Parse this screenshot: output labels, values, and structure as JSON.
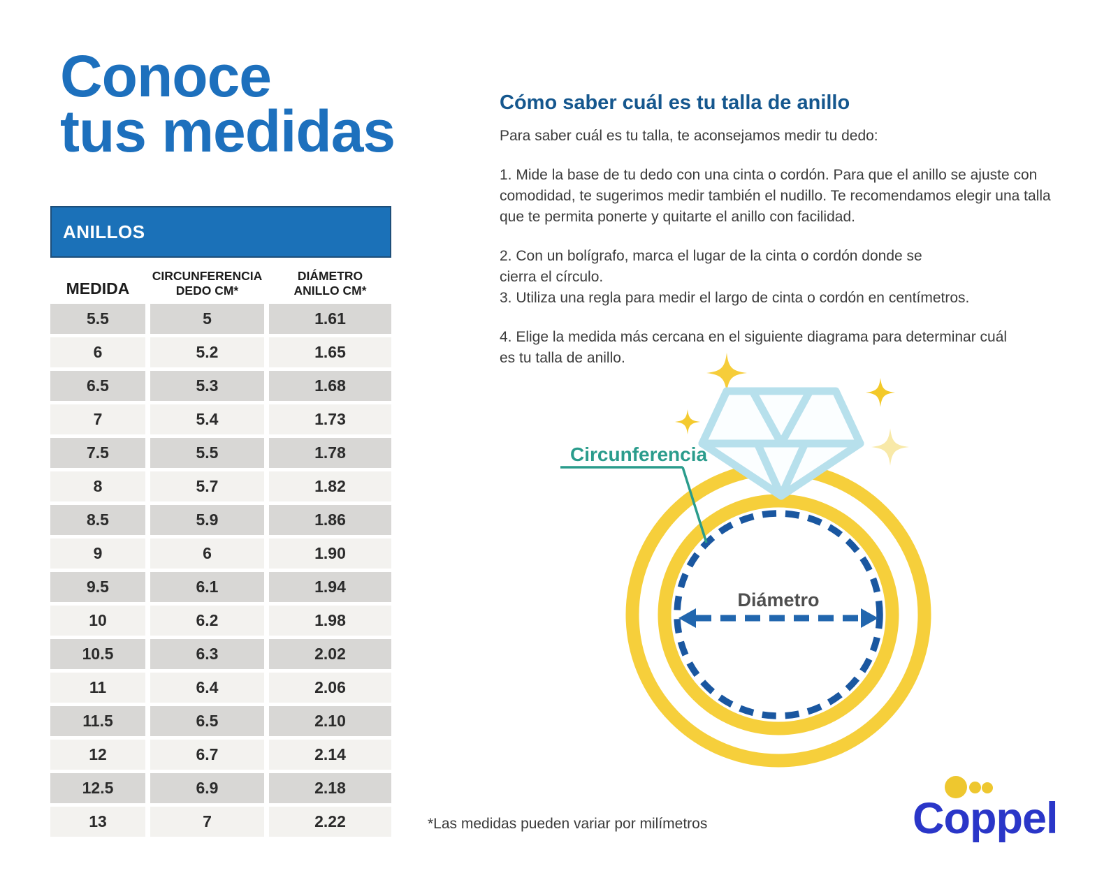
{
  "page": {
    "title_line1": "Conoce",
    "title_line2": "tus medidas",
    "footnote": "*Las medidas pueden variar por milímetros"
  },
  "table": {
    "header": "ANILLOS",
    "columns": [
      [
        "MEDIDA"
      ],
      [
        "CIRCUNFERENCIA",
        "DEDO CM*"
      ],
      [
        "DIÁMETRO",
        "ANILLO CM*"
      ]
    ],
    "rows": [
      [
        "5.5",
        "5",
        "1.61"
      ],
      [
        "6",
        "5.2",
        "1.65"
      ],
      [
        "6.5",
        "5.3",
        "1.68"
      ],
      [
        "7",
        "5.4",
        "1.73"
      ],
      [
        "7.5",
        "5.5",
        "1.78"
      ],
      [
        "8",
        "5.7",
        "1.82"
      ],
      [
        "8.5",
        "5.9",
        "1.86"
      ],
      [
        "9",
        "6",
        "1.90"
      ],
      [
        "9.5",
        "6.1",
        "1.94"
      ],
      [
        "10",
        "6.2",
        "1.98"
      ],
      [
        "10.5",
        "6.3",
        "2.02"
      ],
      [
        "11",
        "6.4",
        "2.06"
      ],
      [
        "11.5",
        "6.5",
        "2.10"
      ],
      [
        "12",
        "6.7",
        "2.14"
      ],
      [
        "12.5",
        "6.9",
        "2.18"
      ],
      [
        "13",
        "7",
        "2.22"
      ]
    ]
  },
  "instructions": {
    "heading": "Cómo saber cuál es tu talla de anillo",
    "intro": "Para saber cuál es tu talla, te aconsejamos medir tu dedo:",
    "steps": [
      "1. Mide la base de tu dedo con una cinta o cordón. Para que el anillo se ajuste con comodidad, te sugerimos medir también el nudillo. Te recomendamos elegir una talla que te permita ponerte y quitarte el anillo con facilidad.",
      "2. Con un bolígrafo, marca el lugar de la cinta o cordón donde se cierra el círculo.",
      "3. Utiliza una regla para medir el largo de cinta o cordón en centímetros.",
      "4. Elige la medida más cercana en el siguiente diagrama para determinar cuál es tu talla de anillo."
    ]
  },
  "diagram": {
    "circumference_label": "Circunferencia",
    "diameter_label": "Diámetro",
    "icons": [
      "ring-icon",
      "diamond-icon",
      "sparkle-icon"
    ]
  },
  "brand": {
    "name": "Coppel"
  },
  "colors": {
    "title_blue": "#1d70bd",
    "table_header_blue": "#1b71b8",
    "heading_blue": "#15578e",
    "row_dark": "#d8d7d5",
    "row_light": "#f3f2ef",
    "teal_label": "#2a9c8c",
    "ring_yellow": "#f6cf3b",
    "diamond_blue": "#b7e0ec",
    "dashed_navy": "#1a57a0",
    "arrow_blue": "#2166ae",
    "sparkle_bright": "#f6cd3a",
    "sparkle_pale": "#f8e9a8",
    "brand_blue": "#2a36c8",
    "brand_yellow": "#eec72f"
  }
}
